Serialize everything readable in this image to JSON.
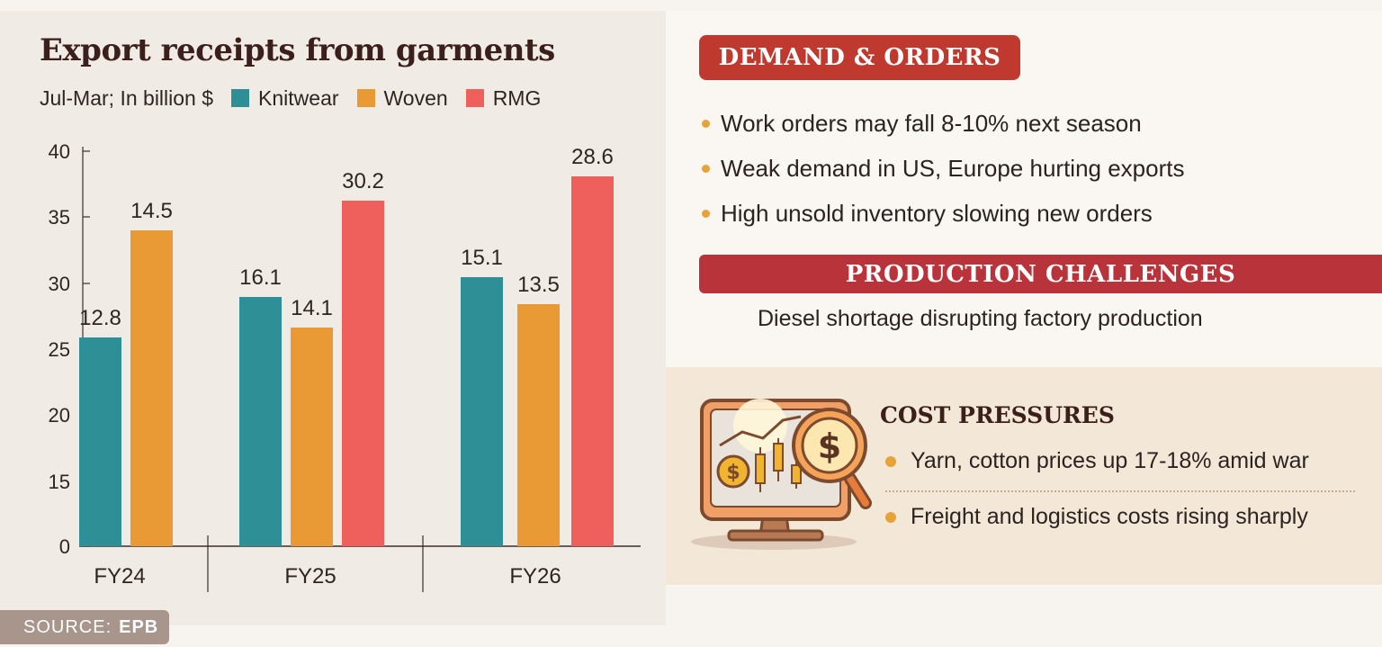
{
  "chart_data": {
    "type": "bar",
    "title": "Export receipts from garments",
    "subtitle": "Jul-Mar; In billion $",
    "categories": [
      "FY24",
      "FY25",
      "FY26"
    ],
    "series": [
      {
        "name": "Knitwear",
        "color": "#2e8f97",
        "values": [
          12.8,
          16.1,
          15.1
        ]
      },
      {
        "name": "Woven",
        "color": "#e99a35",
        "values": [
          14.5,
          14.1,
          13.5
        ]
      },
      {
        "name": "RMG",
        "color": "#ef5f5c",
        "values": [
          null,
          30.2,
          28.6
        ]
      }
    ],
    "yticks": [
      "40",
      "35",
      "30",
      "25",
      "20",
      "15",
      "0"
    ],
    "legend_placement": "top",
    "grid": false
  },
  "source": {
    "label": "SOURCE:",
    "value": "EPB"
  },
  "demand": {
    "heading": "DEMAND & ORDERS",
    "items": [
      "Work orders may fall 8-10% next season",
      "Weak demand in US, Europe hurting exports",
      "High unsold inventory slowing new orders"
    ]
  },
  "production": {
    "heading": "PRODUCTION CHALLENGES",
    "text": "Diesel shortage disrupting factory production"
  },
  "cost": {
    "heading": "COST PRESSURES",
    "items": [
      "Yarn, cotton prices up 17-18% amid war",
      "Freight and logistics costs rising sharply"
    ],
    "icon": "monitor-chart-dollar-magnifier-icon"
  }
}
